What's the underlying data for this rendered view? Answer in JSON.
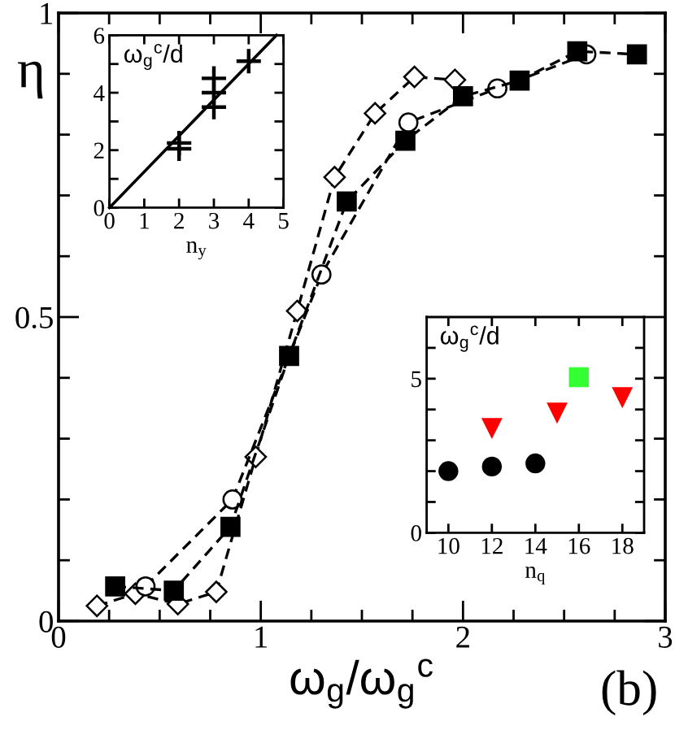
{
  "chart_data": [
    {
      "type": "line",
      "xlabel": "ω$_{g}$/ω$_{g}$$^{c}$",
      "ylabel": "η",
      "annotations": [
        "(b)"
      ],
      "line_style": "dashed",
      "xlim": [
        0,
        3
      ],
      "ylim": [
        0,
        1
      ],
      "xticks": [
        0,
        {
          "value": 0.25,
          "label": null
        },
        {
          "value": 0.5,
          "label": null
        },
        {
          "value": 0.75,
          "label": null
        },
        1,
        {
          "value": 1.25,
          "label": null
        },
        {
          "value": 1.5,
          "label": null
        },
        {
          "value": 1.75,
          "label": null
        },
        2,
        {
          "value": 2.25,
          "label": null
        },
        {
          "value": 2.5,
          "label": null
        },
        {
          "value": 2.75,
          "label": null
        },
        3
      ],
      "yticks": [
        0,
        {
          "value": 0.1,
          "label": null
        },
        {
          "value": 0.2,
          "label": null
        },
        {
          "value": 0.3,
          "label": null
        },
        {
          "value": 0.4,
          "label": null
        },
        0.5,
        {
          "value": 0.6,
          "label": null
        },
        {
          "value": 0.7,
          "label": null
        },
        {
          "value": 0.8,
          "label": null
        },
        {
          "value": 0.9,
          "label": null
        },
        1
      ],
      "series": [
        {
          "color": "#000000",
          "marker": "diamond-open",
          "x": [
            0.19,
            0.38,
            0.59,
            0.78,
            0.975,
            1.18,
            1.365,
            1.565,
            1.76,
            1.96
          ],
          "values": [
            0.025,
            0.045,
            0.028,
            0.048,
            0.27,
            0.51,
            0.73,
            0.835,
            0.895,
            0.89
          ]
        },
        {
          "color": "#000000",
          "marker": "circle-open",
          "x": [
            0.43,
            0.86,
            1.3,
            1.73,
            2.17,
            2.61
          ],
          "values": [
            0.057,
            0.2,
            0.57,
            0.82,
            0.876,
            0.932
          ]
        },
        {
          "color": "#000000",
          "marker": "square",
          "x": [
            0.28,
            0.57,
            0.85,
            1.14,
            1.425,
            1.715,
            2.0,
            2.28,
            2.565,
            2.86
          ],
          "values": [
            0.057,
            0.05,
            0.155,
            0.436,
            0.69,
            0.79,
            0.863,
            0.889,
            0.937,
            0.932
          ]
        }
      ]
    },
    {
      "type": "scatter",
      "xlabel": "n$_{y}$",
      "ylabel": "ω$_{g}$$^{c}$/d",
      "xlim": [
        0,
        5
      ],
      "ylim": [
        0,
        6
      ],
      "xticks": [
        0,
        1,
        2,
        3,
        4,
        5
      ],
      "yticks": [
        0,
        {
          "value": 1,
          "label": null
        },
        2,
        {
          "value": 3,
          "label": null
        },
        4,
        {
          "value": 5,
          "label": null
        },
        6
      ],
      "series": [
        {
          "type": "line",
          "color": "#000000",
          "marker": "none",
          "line_style": "solid",
          "x": [
            0,
            4.8
          ],
          "values": [
            0,
            6
          ]
        },
        {
          "color": "#000000",
          "marker": "cross",
          "x": [
            2,
            2,
            3,
            3,
            3,
            4
          ],
          "values": [
            2.25,
            2.05,
            4.5,
            4.0,
            3.5,
            5.1
          ]
        }
      ]
    },
    {
      "type": "scatter",
      "xlabel": "n$_{q}$",
      "ylabel": "ω$_{g}$$^{c}$/d",
      "xlim": [
        9,
        19
      ],
      "ylim": [
        0,
        7
      ],
      "xticks": [
        10,
        12,
        14,
        16,
        18
      ],
      "yticks": [
        0,
        {
          "value": 1,
          "label": null
        },
        {
          "value": 2,
          "label": null
        },
        {
          "value": 3,
          "label": null
        },
        {
          "value": 4,
          "label": null
        },
        5,
        {
          "value": 6,
          "label": null
        }
      ],
      "series": [
        {
          "color": "#000000",
          "marker": "circle",
          "x": [
            10,
            12,
            14
          ],
          "values": [
            2.0,
            2.15,
            2.25
          ]
        },
        {
          "color": "#ff0000",
          "marker": "triangle-down",
          "x": [
            12,
            15,
            18
          ],
          "values": [
            3.4,
            3.9,
            4.4
          ]
        },
        {
          "color": "#33ff33",
          "marker": "square",
          "x": [
            16
          ],
          "values": [
            5.05
          ]
        }
      ]
    }
  ]
}
